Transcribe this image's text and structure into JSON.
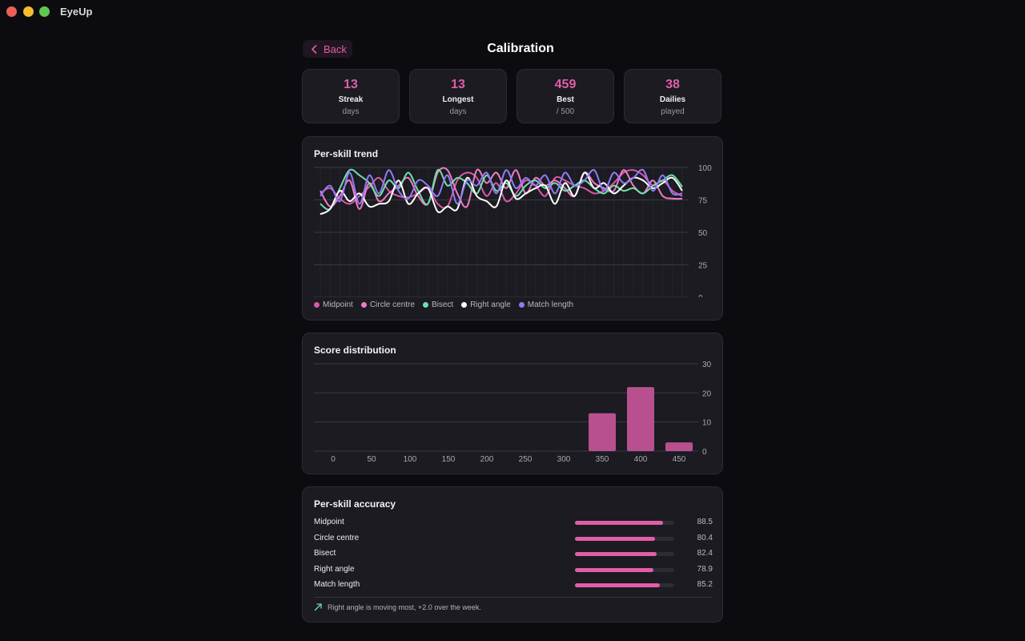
{
  "app": {
    "title": "EyeUp"
  },
  "header": {
    "back_label": "Back",
    "title": "Calibration"
  },
  "stats": [
    {
      "value": "13",
      "label": "Streak",
      "sub": "days"
    },
    {
      "value": "13",
      "label": "Longest",
      "sub": "days"
    },
    {
      "value": "459",
      "label": "Best",
      "sub": "/ 500"
    },
    {
      "value": "38",
      "label": "Dailies",
      "sub": "played"
    }
  ],
  "colors": {
    "accent": "#e25da8"
  },
  "trend": {
    "title": "Per-skill trend"
  },
  "distribution": {
    "title": "Score distribution"
  },
  "accuracy": {
    "title": "Per-skill accuracy",
    "items": [
      {
        "label": "Midpoint",
        "value": 88.5,
        "display": "88.5"
      },
      {
        "label": "Circle centre",
        "value": 80.4,
        "display": "80.4"
      },
      {
        "label": "Bisect",
        "value": 82.4,
        "display": "82.4"
      },
      {
        "label": "Right angle",
        "value": 78.9,
        "display": "78.9"
      },
      {
        "label": "Match length",
        "value": 85.2,
        "display": "85.2"
      }
    ],
    "insight": "Right angle is moving most, +2.0 over the week.",
    "insight_icon": "trending-up-icon"
  },
  "chart_data": [
    {
      "type": "line",
      "title": "Per-skill trend",
      "ylim": [
        0,
        100
      ],
      "yticks": [
        "0",
        "25",
        "50",
        "75",
        "100"
      ],
      "grid": true,
      "legend_placement": "bottom-left",
      "x": [
        1,
        2,
        3,
        4,
        5,
        6,
        7,
        8,
        9,
        10,
        11,
        12,
        13,
        14,
        15,
        16,
        17,
        18,
        19,
        20,
        21,
        22,
        23,
        24,
        25,
        26,
        27,
        28,
        29,
        30,
        31,
        32,
        33,
        34,
        35,
        36,
        37,
        38
      ],
      "series": [
        {
          "name": "Midpoint",
          "color": "#d957a8",
          "values": [
            80,
            84,
            76,
            72,
            78,
            85,
            92,
            82,
            78,
            77,
            80,
            84,
            72,
            70,
            90,
            96,
            92,
            78,
            88,
            74,
            80,
            90,
            86,
            78,
            92,
            90,
            86,
            84,
            80,
            82,
            88,
            96,
            98,
            94,
            86,
            90,
            82,
            78
          ]
        },
        {
          "name": "Circle centre",
          "color": "#f07ac4",
          "values": [
            82,
            70,
            78,
            90,
            68,
            88,
            74,
            80,
            86,
            92,
            78,
            72,
            96,
            98,
            80,
            70,
            98,
            88,
            96,
            84,
            98,
            80,
            92,
            86,
            90,
            84,
            78,
            96,
            88,
            84,
            82,
            98,
            86,
            80,
            90,
            78,
            76,
            76
          ]
        },
        {
          "name": "Bisect",
          "color": "#6fe0a8",
          "values": [
            72,
            68,
            84,
            98,
            94,
            88,
            78,
            90,
            84,
            96,
            82,
            72,
            98,
            86,
            92,
            88,
            80,
            94,
            82,
            88,
            78,
            86,
            90,
            84,
            88,
            82,
            86,
            90,
            84,
            80,
            86,
            82,
            84,
            80,
            86,
            90,
            94,
            85
          ]
        },
        {
          "name": "Right angle",
          "color": "#ffffff",
          "values": [
            64,
            68,
            82,
            74,
            80,
            70,
            72,
            74,
            90,
            72,
            80,
            84,
            66,
            70,
            68,
            92,
            78,
            74,
            70,
            90,
            76,
            80,
            84,
            86,
            72,
            88,
            78,
            96,
            84,
            88,
            80,
            86,
            92,
            90,
            84,
            88,
            92,
            82
          ]
        },
        {
          "name": "Match length",
          "color": "#8d7cf5",
          "values": [
            78,
            86,
            74,
            96,
            72,
            94,
            80,
            98,
            82,
            76,
            90,
            86,
            78,
            94,
            72,
            90,
            86,
            96,
            80,
            98,
            84,
            92,
            86,
            94,
            80,
            96,
            86,
            90,
            98,
            82,
            96,
            88,
            92,
            98,
            82,
            94,
            80,
            80
          ]
        }
      ]
    },
    {
      "type": "bar",
      "title": "Score distribution",
      "categories": [
        "0",
        "50",
        "100",
        "150",
        "200",
        "250",
        "300",
        "350",
        "400",
        "450"
      ],
      "values": [
        0,
        0,
        0,
        0,
        0,
        0,
        0,
        13,
        22,
        3
      ],
      "ylim": [
        0,
        30
      ],
      "yticks": [
        "0",
        "10",
        "20",
        "30"
      ],
      "grid": true,
      "color": "#b8508f"
    }
  ]
}
